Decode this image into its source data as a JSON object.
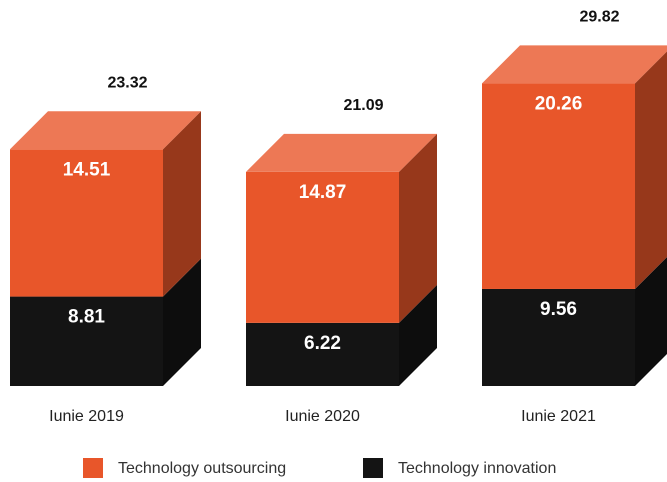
{
  "chart_data": {
    "type": "bar3d-stacked",
    "categories": [
      "Iunie 2019",
      "Iunie 2020",
      "Iunie 2021"
    ],
    "series": [
      {
        "name": "Technology outsourcing",
        "color": "#e8562a",
        "values": [
          14.51,
          14.87,
          20.26
        ]
      },
      {
        "name": "Technology innovation",
        "color": "#141414",
        "values": [
          8.81,
          6.22,
          9.56
        ]
      }
    ],
    "totals": [
      23.32,
      21.09,
      29.82
    ]
  }
}
